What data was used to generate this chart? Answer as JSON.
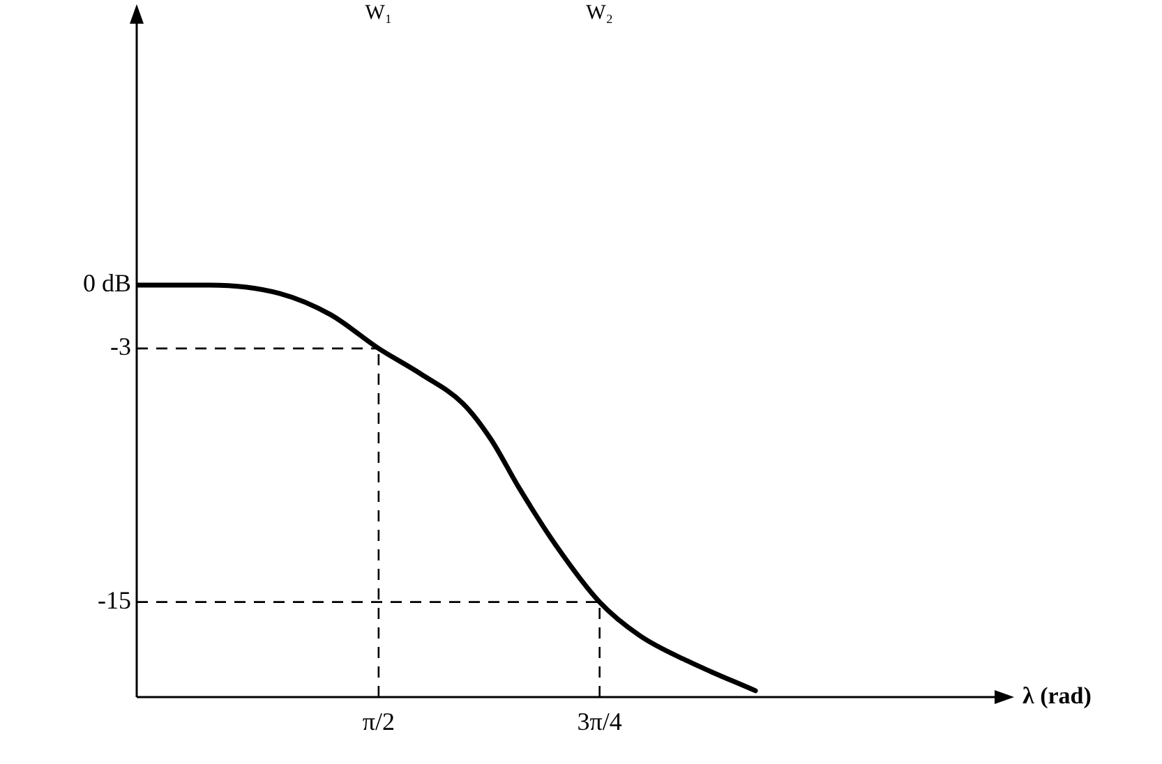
{
  "chart_data": {
    "type": "line",
    "xlabel": "λ (rad)",
    "x": [
      0.711,
      0.97,
      1.22,
      1.4,
      1.5708,
      1.72,
      1.87,
      1.97,
      2.07,
      2.2,
      2.356,
      2.5,
      2.67,
      2.91
    ],
    "series": [
      {
        "color": "#000000",
        "values": [
          0,
          0,
          -0.4,
          -1.4,
          -3,
          -4.2,
          -5.6,
          -7.3,
          -9.6,
          -12.3,
          -15,
          -16.6,
          -17.8,
          -19.2
        ]
      }
    ],
    "xlim": [
      0.711,
      3.77
    ],
    "xticks": [
      {
        "value": 1.5708,
        "label": "π/2"
      },
      {
        "value": 2.3562,
        "label": "3π/4"
      }
    ],
    "ylim": [
      -19.5,
      12.5
    ],
    "yticks": [
      {
        "value": 0,
        "label": "0 dB"
      },
      {
        "value": -3,
        "label": "-3"
      },
      {
        "value": -15,
        "label": "-15"
      }
    ],
    "ref_lines": [
      {
        "axis": "y",
        "value": -3,
        "line_style": "dashed"
      },
      {
        "axis": "x",
        "value": 1.5708,
        "line_style": "dashed"
      },
      {
        "axis": "y",
        "value": -15,
        "line_style": "dashed"
      },
      {
        "axis": "x",
        "value": 2.3562,
        "line_style": "dashed"
      }
    ],
    "annotations": [
      "W₁",
      "W₂"
    ],
    "grid": false,
    "legend": false,
    "marker": "none",
    "line_style": "solid"
  }
}
